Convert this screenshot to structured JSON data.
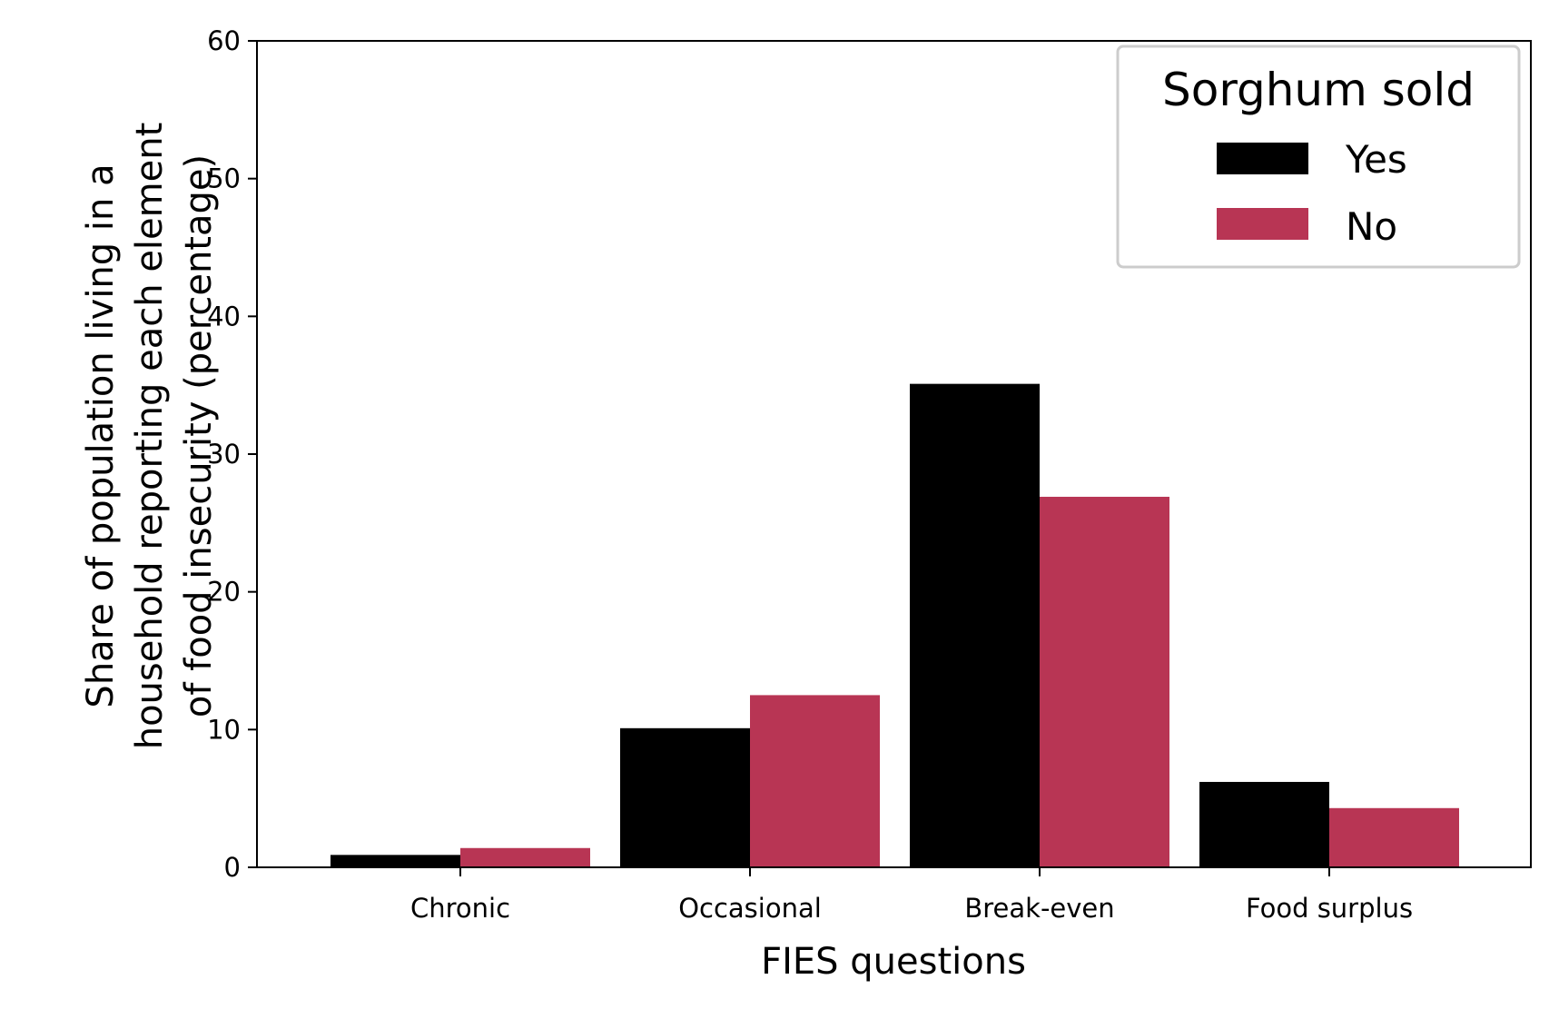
{
  "chart_data": {
    "type": "bar",
    "title": "",
    "xlabel": "FIES questions",
    "ylabel_lines": [
      "Share of population living in a",
      "household reporting each element",
      "of food insecurity (percentage)"
    ],
    "categories": [
      "Chronic",
      "Occasional",
      "Break-even",
      "Food surplus"
    ],
    "series": [
      {
        "name": "Yes",
        "color": "#000000",
        "values": [
          0.9,
          10.1,
          35.1,
          6.2
        ]
      },
      {
        "name": "No",
        "color": "#b83554",
        "values": [
          1.4,
          12.5,
          26.9,
          4.3
        ]
      }
    ],
    "ylim": [
      0,
      60
    ],
    "yticks": [
      "0",
      "10",
      "20",
      "30",
      "40",
      "50",
      "60"
    ],
    "legend": {
      "title": "Sorghum sold",
      "position": "top-right"
    },
    "grid": false
  }
}
